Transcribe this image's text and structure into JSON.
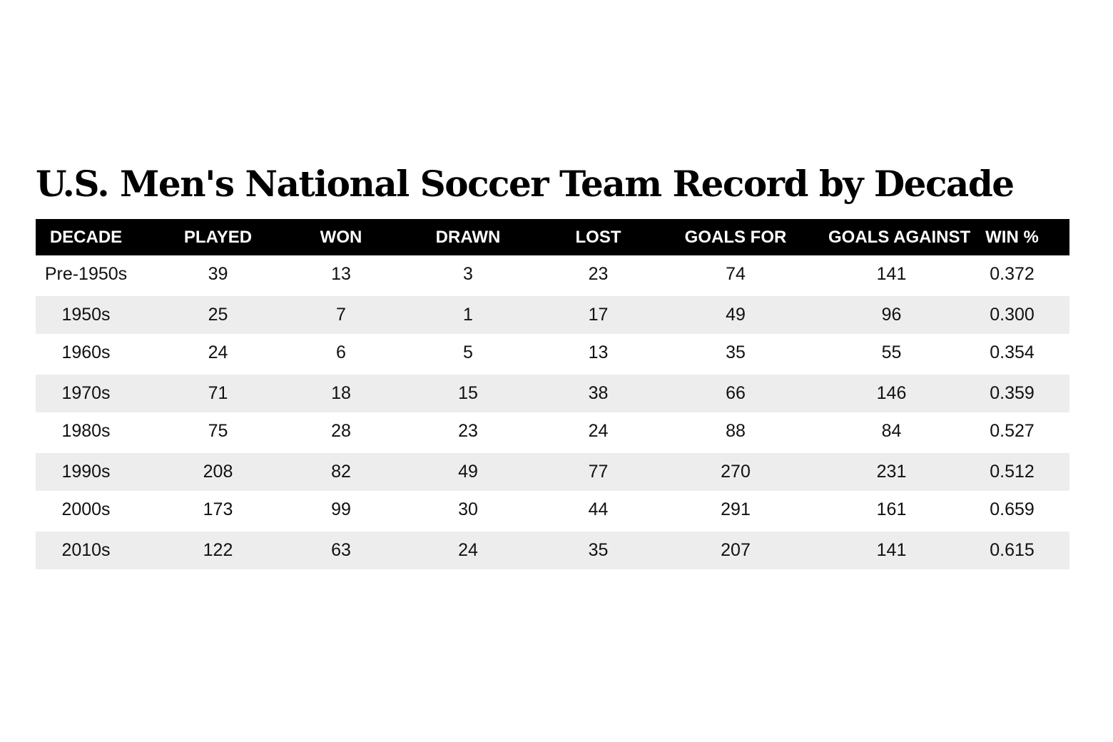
{
  "chart_data": {
    "type": "table",
    "title": "U.S. Men's National Soccer Team Record by Decade",
    "columns": [
      "DECADE",
      "PLAYED",
      "WON",
      "DRAWN",
      "LOST",
      "GOALS FOR",
      "GOALS AGAINST",
      "WIN %"
    ],
    "rows": [
      [
        "Pre-1950s",
        "39",
        "13",
        "3",
        "23",
        "74",
        "141",
        "0.372"
      ],
      [
        "1950s",
        "25",
        "7",
        "1",
        "17",
        "49",
        "96",
        "0.300"
      ],
      [
        "1960s",
        "24",
        "6",
        "5",
        "13",
        "35",
        "55",
        "0.354"
      ],
      [
        "1970s",
        "71",
        "18",
        "15",
        "38",
        "66",
        "146",
        "0.359"
      ],
      [
        "1980s",
        "75",
        "28",
        "23",
        "24",
        "88",
        "84",
        "0.527"
      ],
      [
        "1990s",
        "208",
        "82",
        "49",
        "77",
        "270",
        "231",
        "0.512"
      ],
      [
        "2000s",
        "173",
        "99",
        "30",
        "44",
        "291",
        "161",
        "0.659"
      ],
      [
        "2010s",
        "122",
        "63",
        "24",
        "35",
        "207",
        "141",
        "0.615"
      ]
    ]
  },
  "colors": {
    "header_background": "#000000",
    "header_text": "#ffffff",
    "stripe_background": "#ededed",
    "row_background": "#ffffff"
  }
}
